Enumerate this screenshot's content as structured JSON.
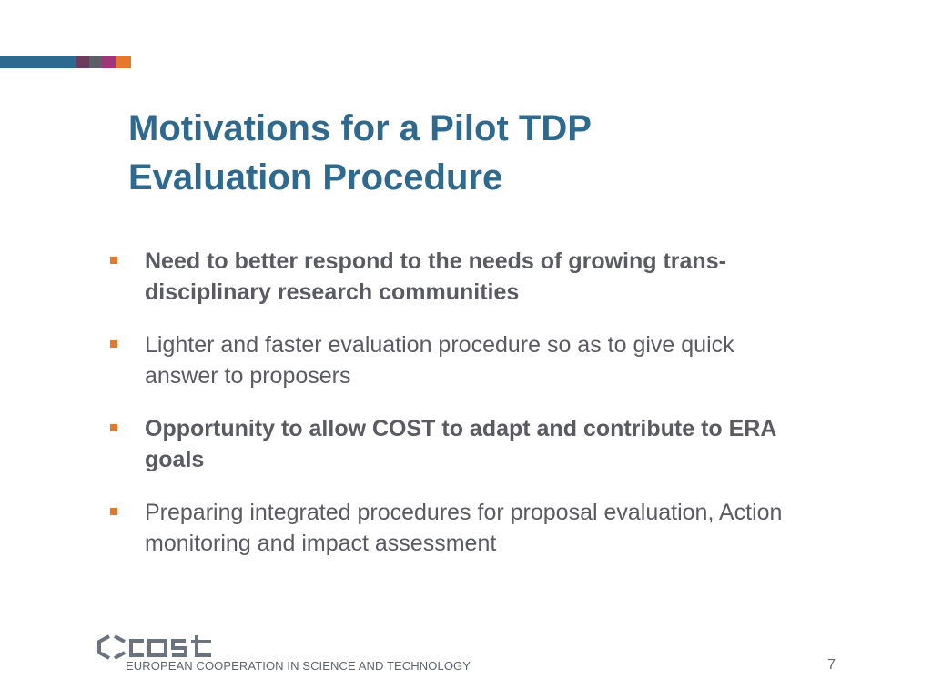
{
  "slide": {
    "title_lines": [
      "Motivations for a Pilot TDP",
      "Evaluation Procedure"
    ],
    "bullets": [
      {
        "lines": [
          "Need to better respond to the needs of growing trans-",
          "disciplinary research communities"
        ],
        "bold": true
      },
      {
        "lines": [
          "Lighter and faster evaluation procedure so as to give quick",
          "answer to proposers"
        ],
        "bold": false
      },
      {
        "lines": [
          "Opportunity to allow COST to adapt and contribute to ERA",
          "goals"
        ],
        "bold": true
      },
      {
        "lines": [
          "Preparing integrated procedures for proposal evaluation, Action",
          "monitoring and impact assessment"
        ],
        "bold": false
      }
    ],
    "page_number": "7"
  },
  "footer": {
    "logo_word": "cost",
    "logo_tagline": "EUROPEAN COOPERATION IN SCIENCE AND TECHNOLOGY"
  },
  "colors": {
    "title": "#2e6a8f",
    "bullet_marker": "#e8772e",
    "body_text": "#5a5a63",
    "bar_segments": [
      "#2e6a8f",
      "#6d3b5e",
      "#5e5e66",
      "#a0357a",
      "#e8772e"
    ]
  }
}
